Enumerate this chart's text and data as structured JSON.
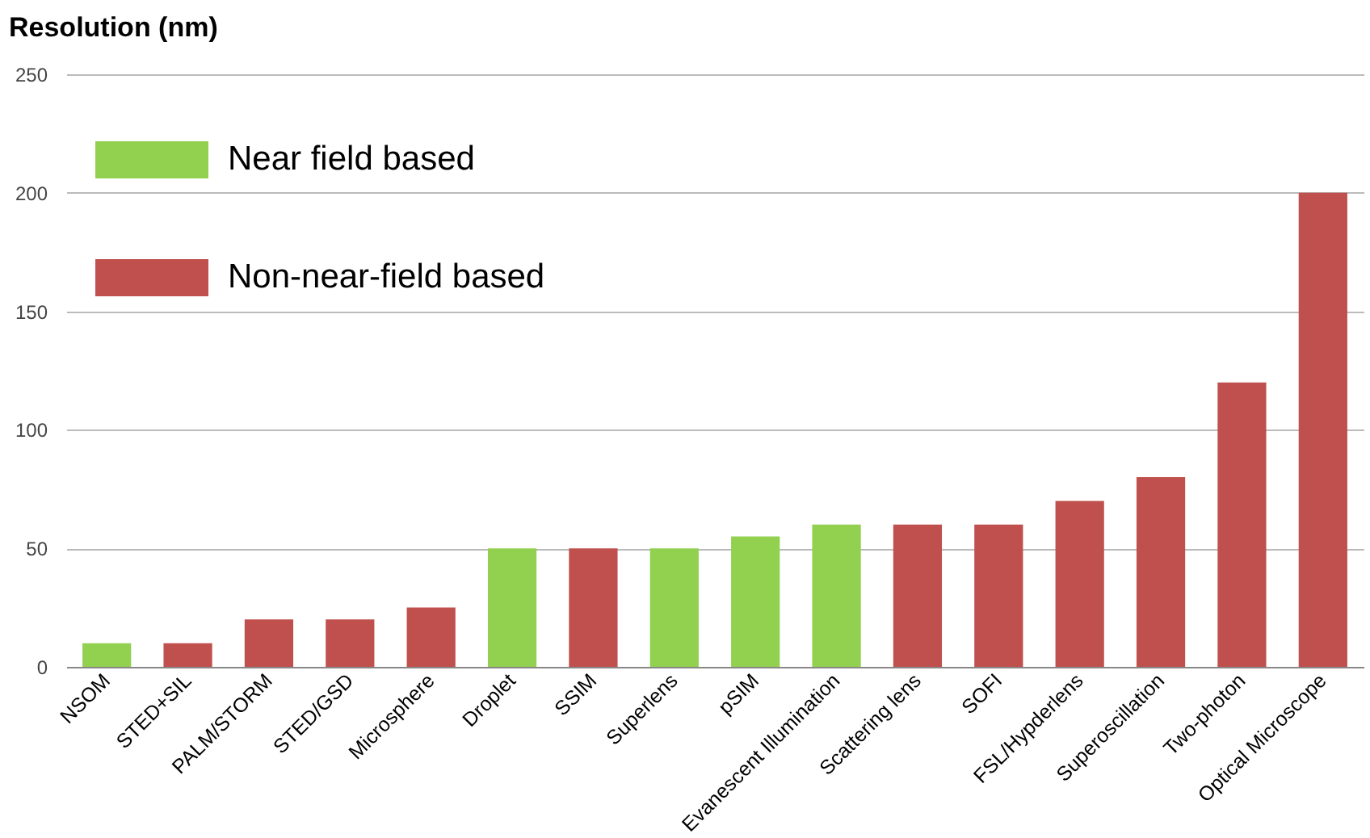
{
  "chart_data": {
    "type": "bar",
    "ylabel": "Resolution (nm)",
    "categories": [
      "NSOM",
      "STED+SIL",
      "PALM/STORM",
      "STED/GSD",
      "Microsphere",
      "Droplet",
      "SSIM",
      "Superlens",
      "pSIM",
      "Evanescent Illumination",
      "Scattering lens",
      "SOFI",
      "FSL/Hypderlens",
      "Superoscillation",
      "Two-photon",
      "Optical Microscope"
    ],
    "series": [
      {
        "name": "Near field based",
        "color": "#92d050",
        "values": [
          10,
          null,
          null,
          null,
          null,
          50,
          null,
          50,
          55,
          60,
          null,
          null,
          null,
          null,
          null,
          null
        ]
      },
      {
        "name": "Non-near-field based",
        "color": "#c0504d",
        "values": [
          null,
          10,
          20,
          20,
          25,
          null,
          50,
          null,
          null,
          null,
          60,
          60,
          70,
          80,
          120,
          200
        ]
      }
    ],
    "ylim": [
      0,
      250
    ],
    "yticks": [
      0,
      50,
      100,
      150,
      200,
      250
    ],
    "grid": "y",
    "legend": "top left"
  }
}
